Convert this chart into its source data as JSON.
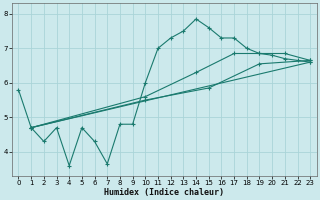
{
  "xlabel": "Humidex (Indice chaleur)",
  "bg_color": "#cce9ec",
  "grid_color": "#aad4d8",
  "line_color": "#1a7a6e",
  "xlim": [
    -0.5,
    23.5
  ],
  "ylim": [
    3.3,
    8.3
  ],
  "yticks": [
    4,
    5,
    6,
    7,
    8
  ],
  "xtick_labels": [
    "0",
    "1",
    "2",
    "3",
    "4",
    "5",
    "6",
    "7",
    "8",
    "9",
    "10",
    "11",
    "12",
    "13",
    "14",
    "15",
    "16",
    "17",
    "18",
    "19",
    "20",
    "21",
    "22",
    "23"
  ],
  "xticks": [
    0,
    1,
    2,
    3,
    4,
    5,
    6,
    7,
    8,
    9,
    10,
    11,
    12,
    13,
    14,
    15,
    16,
    17,
    18,
    19,
    20,
    21,
    22,
    23
  ],
  "lines": [
    {
      "x": [
        0,
        1,
        2,
        3,
        4,
        5,
        6,
        7,
        8,
        9,
        10,
        11,
        12,
        13,
        14,
        15,
        16,
        17,
        18,
        19,
        20,
        21,
        22,
        23
      ],
      "y": [
        5.8,
        4.7,
        4.3,
        4.7,
        3.6,
        4.7,
        4.3,
        3.65,
        4.8,
        4.8,
        6.0,
        7.0,
        7.3,
        7.5,
        7.85,
        7.6,
        7.3,
        7.3,
        7.0,
        6.85,
        6.8,
        6.7,
        6.65,
        6.6
      ]
    },
    {
      "x": [
        1,
        23
      ],
      "y": [
        4.7,
        6.6
      ]
    },
    {
      "x": [
        1,
        10,
        15,
        19,
        23
      ],
      "y": [
        4.7,
        5.5,
        5.85,
        6.55,
        6.65
      ]
    },
    {
      "x": [
        1,
        10,
        14,
        17,
        19,
        21,
        23
      ],
      "y": [
        4.7,
        5.6,
        6.3,
        6.85,
        6.85,
        6.85,
        6.65
      ]
    }
  ]
}
